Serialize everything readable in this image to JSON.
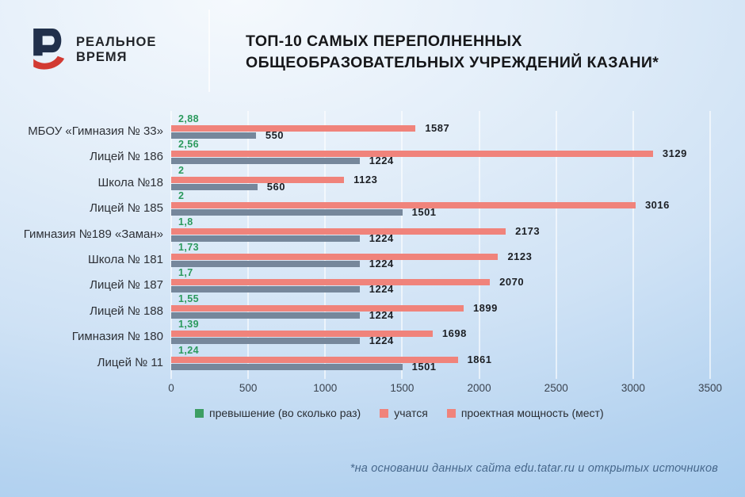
{
  "brand": {
    "line1": "РЕАЛЬНОЕ",
    "line2": "ВРЕМЯ"
  },
  "title": {
    "line1": "ТОП-10 САМЫХ ПЕРЕПОЛНЕННЫХ",
    "line2": "ОБЩЕОБРАЗОВАТЕЛЬНЫХ УЧРЕЖДЕНИЙ КАЗАНИ*"
  },
  "footnote": "*на основании данных сайта edu.tatar.ru и открытых источников",
  "colors": {
    "students_bar": "#f0837b",
    "capacity_bar": "#76879b",
    "ratio_text": "#2b9a5d",
    "legend_swatch_students": "#f0837b",
    "legend_swatch_capacity": "#f0837b",
    "legend_swatch_ratio": "#3d9e63",
    "logo_navy": "#21304b",
    "logo_red": "#d23a32"
  },
  "legend": [
    {
      "label": "превышение (во сколько раз)",
      "color": "#3d9e63"
    },
    {
      "label": "учатся",
      "color": "#f0837b"
    },
    {
      "label": "проектная мощность (мест)",
      "color": "#f0837b"
    }
  ],
  "chart_data": {
    "type": "bar",
    "orientation": "horizontal",
    "title": "ТОП-10 самых переполненных общеобразовательных учреждений Казани*",
    "categories": [
      "МБОУ «Гимназия № 33»",
      "Лицей № 186",
      "Школа №18",
      "Лицей № 185",
      "Гимназия №189 «Заман»",
      "Школа № 181",
      "Лицей № 187",
      "Лицей № 188",
      "Гимназия № 180",
      "Лицей № 11"
    ],
    "series": [
      {
        "name": "превышение (во сколько раз)",
        "values": [
          2.88,
          2.56,
          2,
          2,
          1.8,
          1.73,
          1.7,
          1.55,
          1.39,
          1.24
        ],
        "display": [
          "2,88",
          "2,56",
          "2",
          "2",
          "1,8",
          "1,73",
          "1,7",
          "1,55",
          "1,39",
          "1,24"
        ],
        "color": "#2b9a5d",
        "render": "text-label"
      },
      {
        "name": "учатся",
        "values": [
          1587,
          3129,
          1123,
          3016,
          2173,
          2123,
          2070,
          1899,
          1698,
          1861
        ],
        "display": [
          "1587",
          "3129",
          "1123",
          "3016",
          "2173",
          "2123",
          "2070",
          "1899",
          "1698",
          "1861"
        ],
        "color": "#f0837b"
      },
      {
        "name": "проектная мощность (мест)",
        "values": [
          550,
          1224,
          560,
          1501,
          1224,
          1224,
          1224,
          1224,
          1224,
          1501
        ],
        "display": [
          "550",
          "1224",
          "560",
          "1501",
          "1224",
          "1224",
          "1224",
          "1224",
          "1224",
          "1501"
        ],
        "color": "#76879b"
      }
    ],
    "x_axis": {
      "min": 0,
      "max": 3500,
      "ticks": [
        "0",
        "500",
        "1000",
        "1500",
        "2000",
        "2500",
        "3000",
        "3500"
      ]
    },
    "grid": true,
    "legend_position": "bottom"
  }
}
